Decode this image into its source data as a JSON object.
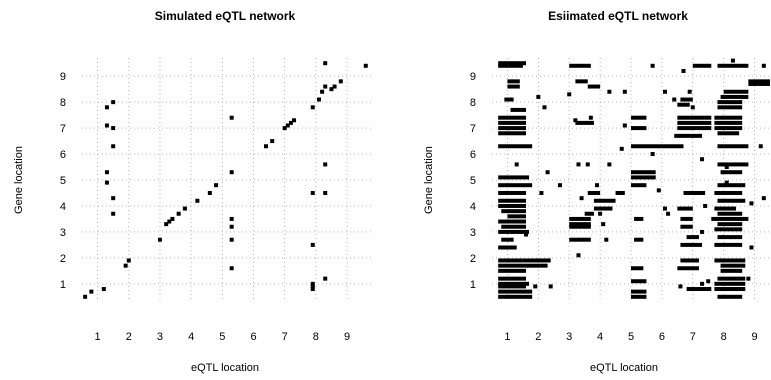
{
  "chart_data": [
    {
      "type": "scatter",
      "title": "Simulated eQTL network",
      "xlabel": "eQTL location",
      "ylabel": "Gene location",
      "xlim": [
        0.5,
        9.8
      ],
      "ylim": [
        0.3,
        9.7
      ],
      "xticks": [
        "1",
        "2",
        "3",
        "4",
        "5",
        "6",
        "7",
        "8",
        "9"
      ],
      "yticks": [
        "1",
        "2",
        "3",
        "4",
        "5",
        "6",
        "7",
        "8",
        "9"
      ],
      "grid": true,
      "marker_color": "#000000",
      "series": [
        {
          "points": [
            [
              0.6,
              0.5
            ],
            [
              0.8,
              0.7
            ],
            [
              1.2,
              0.8
            ],
            [
              1.3,
              4.9
            ],
            [
              1.3,
              5.3
            ],
            [
              1.3,
              7.1
            ],
            [
              1.3,
              7.8
            ],
            [
              1.5,
              3.7
            ],
            [
              1.5,
              4.3
            ],
            [
              1.5,
              6.3
            ],
            [
              1.5,
              7.0
            ],
            [
              1.5,
              8.0
            ],
            [
              1.9,
              1.7
            ],
            [
              2.0,
              1.9
            ],
            [
              3.0,
              2.7
            ],
            [
              3.2,
              3.3
            ],
            [
              3.3,
              3.4
            ],
            [
              3.4,
              3.5
            ],
            [
              3.6,
              3.7
            ],
            [
              3.8,
              3.9
            ],
            [
              4.2,
              4.2
            ],
            [
              4.6,
              4.5
            ],
            [
              4.8,
              4.8
            ],
            [
              5.3,
              1.6
            ],
            [
              5.3,
              2.7
            ],
            [
              5.3,
              3.2
            ],
            [
              5.3,
              3.5
            ],
            [
              5.3,
              5.3
            ],
            [
              5.3,
              7.4
            ],
            [
              6.4,
              6.3
            ],
            [
              6.6,
              6.5
            ],
            [
              7.0,
              7.0
            ],
            [
              7.1,
              7.1
            ],
            [
              7.2,
              7.2
            ],
            [
              7.3,
              7.3
            ],
            [
              7.9,
              0.8
            ],
            [
              7.9,
              0.9
            ],
            [
              7.9,
              1.0
            ],
            [
              7.9,
              2.5
            ],
            [
              7.9,
              4.5
            ],
            [
              7.9,
              7.8
            ],
            [
              8.1,
              8.1
            ],
            [
              8.2,
              8.4
            ],
            [
              8.3,
              1.2
            ],
            [
              8.3,
              4.5
            ],
            [
              8.3,
              5.6
            ],
            [
              8.3,
              8.6
            ],
            [
              8.3,
              9.5
            ],
            [
              8.5,
              8.5
            ],
            [
              8.6,
              8.6
            ],
            [
              8.8,
              8.8
            ],
            [
              9.6,
              9.4
            ]
          ]
        }
      ]
    },
    {
      "type": "scatter",
      "title": "Esiimated eQTL network",
      "xlabel": "eQTL location",
      "ylabel": "Gene location",
      "xlim": [
        0.5,
        9.5
      ],
      "ylim": [
        0.3,
        9.7
      ],
      "xticks": [
        "1",
        "2",
        "3",
        "4",
        "5",
        "6",
        "7",
        "8",
        "9"
      ],
      "yticks": [
        "1",
        "2",
        "3",
        "4",
        "5",
        "6",
        "7",
        "8",
        "9"
      ],
      "grid": true,
      "marker_color": "#000000",
      "bands": [
        [
          0.7,
          1.8,
          0.5
        ],
        [
          0.7,
          1.8,
          0.7
        ],
        [
          0.7,
          1.6,
          0.9
        ],
        [
          0.7,
          1.7,
          1.0
        ],
        [
          0.7,
          1.6,
          1.2
        ],
        [
          0.7,
          1.6,
          1.5
        ],
        [
          0.7,
          2.3,
          1.7
        ],
        [
          0.7,
          1.5,
          1.9
        ],
        [
          1.5,
          2.4,
          1.9
        ],
        [
          0.7,
          1.3,
          2.4
        ],
        [
          0.8,
          1.2,
          2.7
        ],
        [
          0.7,
          1.7,
          3.0
        ],
        [
          0.8,
          1.6,
          3.2
        ],
        [
          0.7,
          1.6,
          3.4
        ],
        [
          1.0,
          1.6,
          3.6
        ],
        [
          0.8,
          1.6,
          3.8
        ],
        [
          0.7,
          1.6,
          4.0
        ],
        [
          0.7,
          1.6,
          4.2
        ],
        [
          0.7,
          1.6,
          4.5
        ],
        [
          0.7,
          1.8,
          4.8
        ],
        [
          0.7,
          1.7,
          5.1
        ],
        [
          0.7,
          1.8,
          6.3
        ],
        [
          0.7,
          1.6,
          6.8
        ],
        [
          0.7,
          1.6,
          7.0
        ],
        [
          0.7,
          1.6,
          7.2
        ],
        [
          0.7,
          1.6,
          7.4
        ],
        [
          1.1,
          1.6,
          7.7
        ],
        [
          0.9,
          1.2,
          8.1
        ],
        [
          1.0,
          1.4,
          8.6
        ],
        [
          1.0,
          1.4,
          8.8
        ],
        [
          0.7,
          1.5,
          9.4
        ],
        [
          0.7,
          1.6,
          9.5
        ],
        [
          5.0,
          6.7,
          6.3
        ],
        [
          5.0,
          5.8,
          5.3
        ],
        [
          5.0,
          5.8,
          5.1
        ],
        [
          5.0,
          5.5,
          4.8
        ],
        [
          5.0,
          5.5,
          7.4
        ],
        [
          5.0,
          5.5,
          7.0
        ],
        [
          5.1,
          5.4,
          3.5
        ],
        [
          5.1,
          5.4,
          2.7
        ],
        [
          5.0,
          5.4,
          1.6
        ],
        [
          5.0,
          5.5,
          1.1
        ],
        [
          5.0,
          5.5,
          0.7
        ],
        [
          5.0,
          5.5,
          0.5
        ],
        [
          3.0,
          3.7,
          3.3
        ],
        [
          3.0,
          3.7,
          3.5
        ],
        [
          3.0,
          3.7,
          3.2
        ],
        [
          3.0,
          3.7,
          2.7
        ],
        [
          3.5,
          3.8,
          3.7
        ],
        [
          3.8,
          4.4,
          3.9
        ],
        [
          3.8,
          4.5,
          4.2
        ],
        [
          3.6,
          4.0,
          4.5
        ],
        [
          4.5,
          4.8,
          4.5
        ],
        [
          3.2,
          3.8,
          7.2
        ],
        [
          3.2,
          3.6,
          8.8
        ],
        [
          3.6,
          4.0,
          8.6
        ],
        [
          3.0,
          3.7,
          9.4
        ],
        [
          6.5,
          7.6,
          7.0
        ],
        [
          6.5,
          7.6,
          7.2
        ],
        [
          6.5,
          7.6,
          7.4
        ],
        [
          6.4,
          7.3,
          6.7
        ],
        [
          6.7,
          7.4,
          4.5
        ],
        [
          6.5,
          7.0,
          3.9
        ],
        [
          6.6,
          7.0,
          3.5
        ],
        [
          6.6,
          7.0,
          3.2
        ],
        [
          6.8,
          7.2,
          2.8
        ],
        [
          6.6,
          7.3,
          2.5
        ],
        [
          6.6,
          7.2,
          1.9
        ],
        [
          6.5,
          7.2,
          1.6
        ],
        [
          6.8,
          7.6,
          0.8
        ],
        [
          6.5,
          6.9,
          7.9
        ],
        [
          6.6,
          7.0,
          8.1
        ],
        [
          7.0,
          7.6,
          9.4
        ],
        [
          7.8,
          8.8,
          9.4
        ],
        [
          8.0,
          8.8,
          8.4
        ],
        [
          7.9,
          8.8,
          8.2
        ],
        [
          7.8,
          8.6,
          8.0
        ],
        [
          7.8,
          8.6,
          7.8
        ],
        [
          7.7,
          8.6,
          7.4
        ],
        [
          7.7,
          8.6,
          7.2
        ],
        [
          7.7,
          8.6,
          7.0
        ],
        [
          7.8,
          8.5,
          6.8
        ],
        [
          7.8,
          8.8,
          6.3
        ],
        [
          7.8,
          8.8,
          5.6
        ],
        [
          7.9,
          8.6,
          5.3
        ],
        [
          7.8,
          8.7,
          4.8
        ],
        [
          7.7,
          8.6,
          4.5
        ],
        [
          7.8,
          8.7,
          4.2
        ],
        [
          7.7,
          8.4,
          3.9
        ],
        [
          7.8,
          8.6,
          3.7
        ],
        [
          7.6,
          8.8,
          3.5
        ],
        [
          7.8,
          8.6,
          3.3
        ],
        [
          7.7,
          8.6,
          3.1
        ],
        [
          7.8,
          8.6,
          2.8
        ],
        [
          7.7,
          8.6,
          2.5
        ],
        [
          7.7,
          8.7,
          1.9
        ],
        [
          7.9,
          8.7,
          1.7
        ],
        [
          7.9,
          8.6,
          1.5
        ],
        [
          7.8,
          8.7,
          1.2
        ],
        [
          7.7,
          8.7,
          1.0
        ],
        [
          7.7,
          8.7,
          0.8
        ],
        [
          7.8,
          8.6,
          0.5
        ],
        [
          8.8,
          9.5,
          8.7
        ],
        [
          8.8,
          9.5,
          8.8
        ]
      ],
      "points": [
        [
          1.9,
          0.9
        ],
        [
          2.1,
          4.5
        ],
        [
          2.3,
          5.3
        ],
        [
          1.6,
          2.9
        ],
        [
          1.3,
          5.6
        ],
        [
          2.0,
          8.2
        ],
        [
          2.2,
          7.8
        ],
        [
          3.3,
          5.6
        ],
        [
          3.6,
          5.6
        ],
        [
          3.0,
          8.3
        ],
        [
          3.2,
          7.3
        ],
        [
          3.7,
          7.4
        ],
        [
          3.3,
          2.1
        ],
        [
          4.1,
          3.3
        ],
        [
          4.2,
          2.7
        ],
        [
          4.0,
          3.7
        ],
        [
          3.4,
          4.3
        ],
        [
          3.9,
          4.8
        ],
        [
          4.3,
          8.4
        ],
        [
          4.8,
          8.4
        ],
        [
          4.3,
          5.6
        ],
        [
          4.8,
          7.1
        ],
        [
          4.7,
          6.2
        ],
        [
          2.7,
          4.8
        ],
        [
          6.4,
          8.1
        ],
        [
          6.1,
          8.4
        ],
        [
          6.1,
          3.9
        ],
        [
          6.2,
          3.7
        ],
        [
          5.9,
          4.6
        ],
        [
          5.7,
          9.4
        ],
        [
          5.7,
          6.0
        ],
        [
          6.6,
          0.9
        ],
        [
          6.7,
          9.2
        ],
        [
          6.9,
          8.4
        ],
        [
          7.0,
          7.8
        ],
        [
          7.3,
          3.0
        ],
        [
          7.4,
          4.0
        ],
        [
          7.3,
          5.8
        ],
        [
          7.3,
          1.0
        ],
        [
          8.9,
          4.1
        ],
        [
          9.3,
          4.3
        ],
        [
          9.2,
          6.3
        ],
        [
          9.3,
          9.4
        ],
        [
          8.8,
          1.2
        ],
        [
          8.9,
          2.4
        ],
        [
          8.1,
          4.9
        ],
        [
          8.1,
          5.5
        ],
        [
          8.3,
          9.6
        ],
        [
          7.5,
          1.1
        ],
        [
          2.4,
          0.9
        ]
      ]
    }
  ]
}
